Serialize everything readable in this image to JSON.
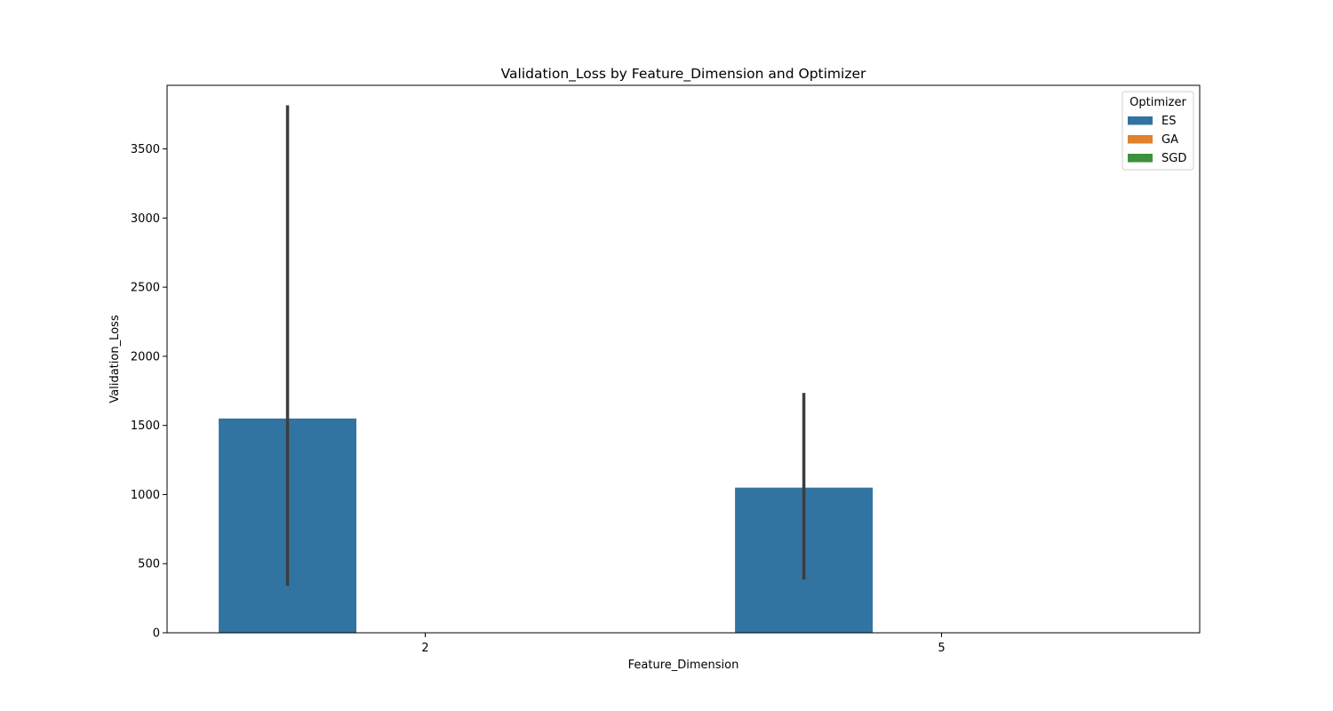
{
  "chart_data": {
    "type": "bar",
    "title": "Validation_Loss by Feature_Dimension and Optimizer",
    "xlabel": "Feature_Dimension",
    "ylabel": "Validation_Loss",
    "categories": [
      "2",
      "5"
    ],
    "ylim": [
      0,
      3960
    ],
    "yticks": [
      0,
      500,
      1000,
      1500,
      2000,
      2500,
      3000,
      3500
    ],
    "grid": false,
    "legend": {
      "title": "Optimizer",
      "placement": "top-right"
    },
    "series": [
      {
        "name": "ES",
        "color": "#3274a1",
        "values": [
          1550,
          1050
        ],
        "error_low": [
          340,
          385
        ],
        "error_high": [
          3815,
          1735
        ]
      },
      {
        "name": "GA",
        "color": "#e1812c",
        "values": [
          null,
          null
        ]
      },
      {
        "name": "SGD",
        "color": "#3a923a",
        "values": [
          null,
          null
        ]
      }
    ],
    "error_bar_color": "#3d3d3d"
  }
}
